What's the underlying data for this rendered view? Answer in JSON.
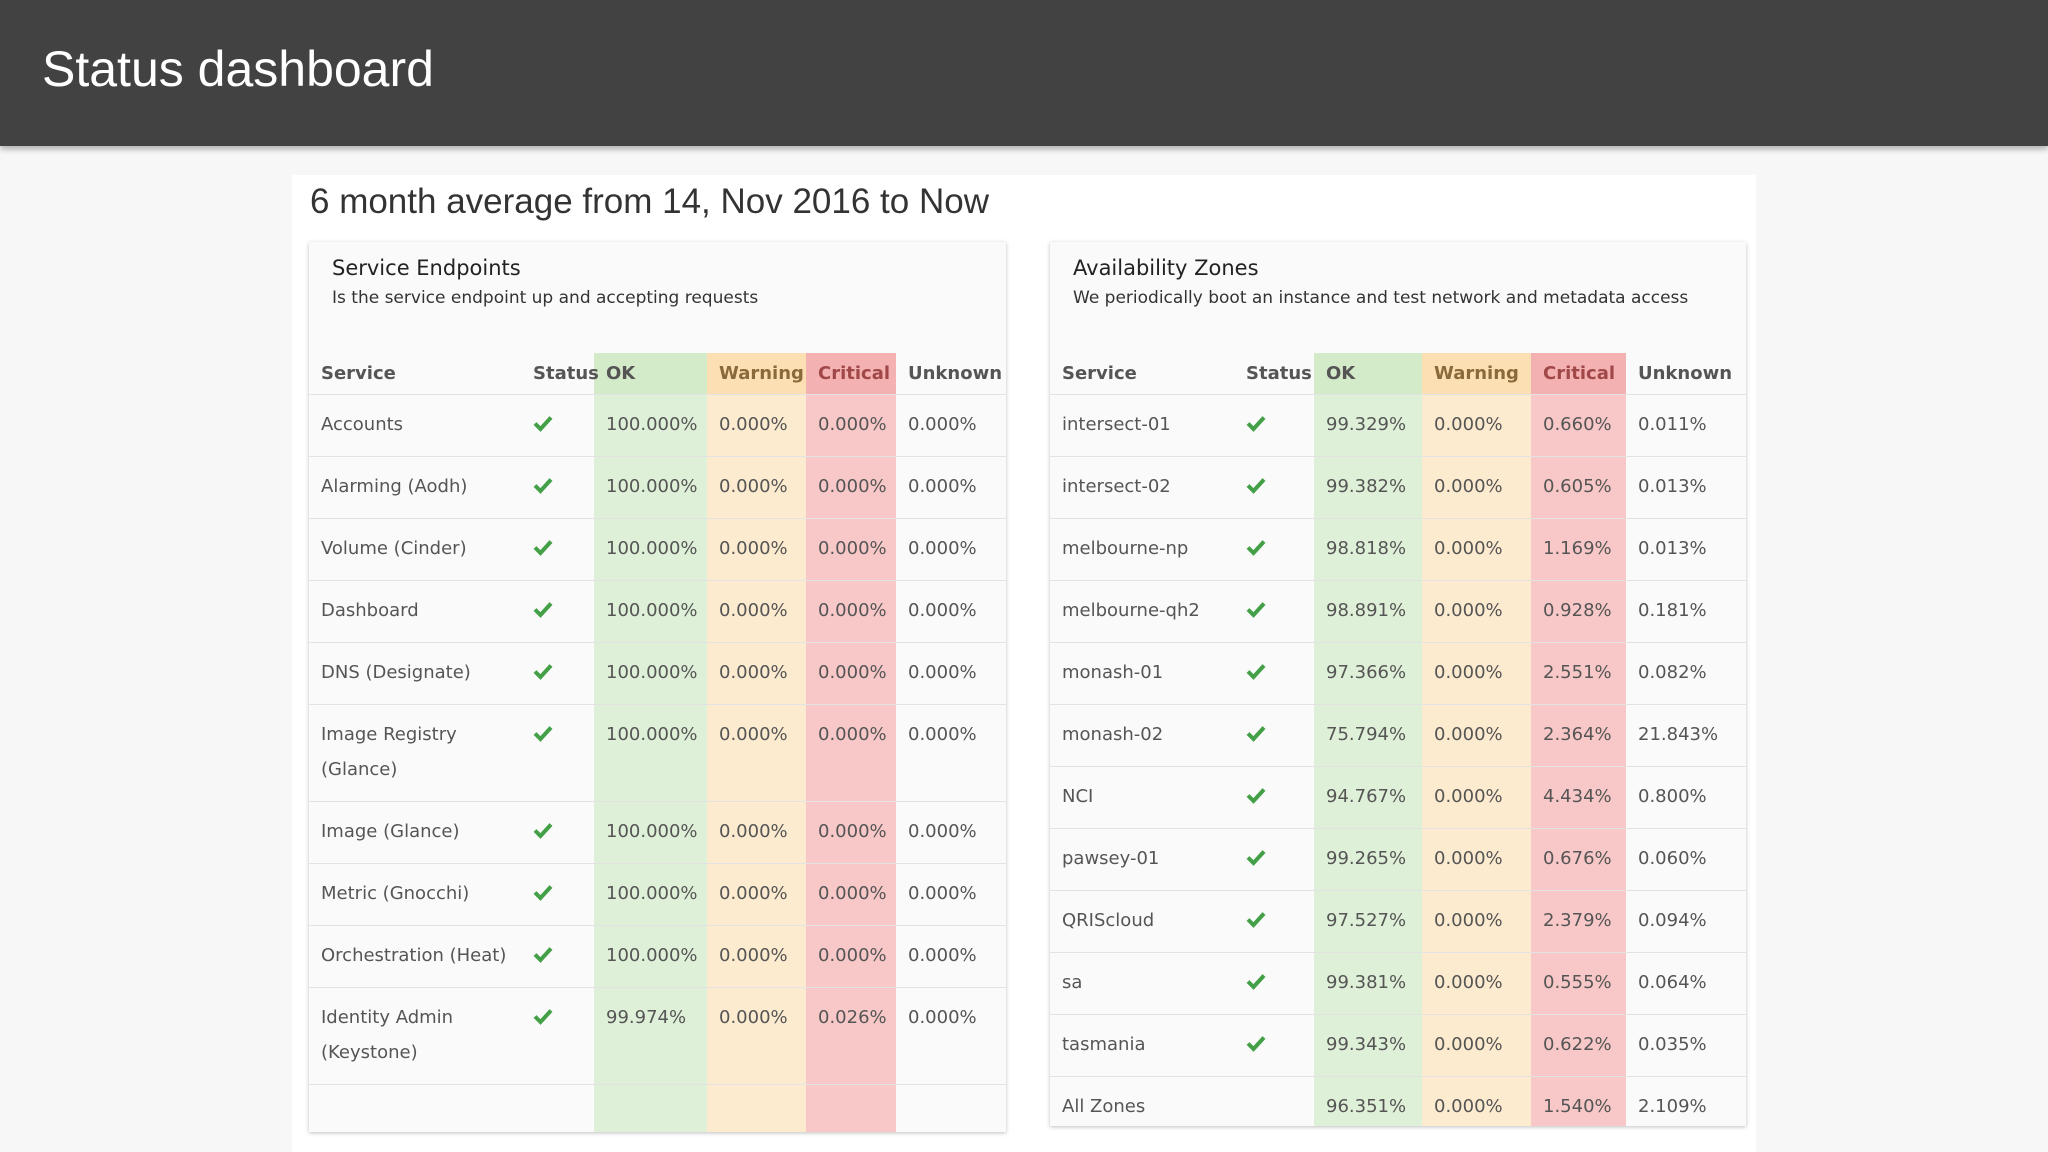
{
  "header": {
    "title": "Status dashboard"
  },
  "heading": "6 month average from 14, Nov 2016 to Now",
  "panels": [
    {
      "title": "Service Endpoints",
      "subtitle": "Is the service endpoint up and accepting requests",
      "columns": [
        "Service",
        "Status",
        "OK",
        "Warning",
        "Critical",
        "Unknown"
      ],
      "rows": [
        {
          "service": "Accounts",
          "status_ok": true,
          "ok": "100.000%",
          "warning": "0.000%",
          "critical": "0.000%",
          "unknown": "0.000%"
        },
        {
          "service": "Alarming (Aodh)",
          "status_ok": true,
          "ok": "100.000%",
          "warning": "0.000%",
          "critical": "0.000%",
          "unknown": "0.000%"
        },
        {
          "service": "Volume (Cinder)",
          "status_ok": true,
          "ok": "100.000%",
          "warning": "0.000%",
          "critical": "0.000%",
          "unknown": "0.000%"
        },
        {
          "service": "Dashboard",
          "status_ok": true,
          "ok": "100.000%",
          "warning": "0.000%",
          "critical": "0.000%",
          "unknown": "0.000%"
        },
        {
          "service": "DNS (Designate)",
          "status_ok": true,
          "ok": "100.000%",
          "warning": "0.000%",
          "critical": "0.000%",
          "unknown": "0.000%"
        },
        {
          "service": "Image Registry (Glance)",
          "status_ok": true,
          "ok": "100.000%",
          "warning": "0.000%",
          "critical": "0.000%",
          "unknown": "0.000%"
        },
        {
          "service": "Image (Glance)",
          "status_ok": true,
          "ok": "100.000%",
          "warning": "0.000%",
          "critical": "0.000%",
          "unknown": "0.000%"
        },
        {
          "service": "Metric (Gnocchi)",
          "status_ok": true,
          "ok": "100.000%",
          "warning": "0.000%",
          "critical": "0.000%",
          "unknown": "0.000%"
        },
        {
          "service": "Orchestration (Heat)",
          "status_ok": true,
          "ok": "100.000%",
          "warning": "0.000%",
          "critical": "0.000%",
          "unknown": "0.000%"
        },
        {
          "service": "Identity Admin (Keystone)",
          "status_ok": true,
          "ok": "99.974%",
          "warning": "0.000%",
          "critical": "0.026%",
          "unknown": "0.000%"
        }
      ]
    },
    {
      "title": "Availability Zones",
      "subtitle": "We periodically boot an instance and test network and metadata access",
      "columns": [
        "Service",
        "Status",
        "OK",
        "Warning",
        "Critical",
        "Unknown"
      ],
      "rows": [
        {
          "service": "intersect-01",
          "status_ok": true,
          "ok": "99.329%",
          "warning": "0.000%",
          "critical": "0.660%",
          "unknown": "0.011%"
        },
        {
          "service": "intersect-02",
          "status_ok": true,
          "ok": "99.382%",
          "warning": "0.000%",
          "critical": "0.605%",
          "unknown": "0.013%"
        },
        {
          "service": "melbourne-np",
          "status_ok": true,
          "ok": "98.818%",
          "warning": "0.000%",
          "critical": "1.169%",
          "unknown": "0.013%"
        },
        {
          "service": "melbourne-qh2",
          "status_ok": true,
          "ok": "98.891%",
          "warning": "0.000%",
          "critical": "0.928%",
          "unknown": "0.181%"
        },
        {
          "service": "monash-01",
          "status_ok": true,
          "ok": "97.366%",
          "warning": "0.000%",
          "critical": "2.551%",
          "unknown": "0.082%"
        },
        {
          "service": "monash-02",
          "status_ok": true,
          "ok": "75.794%",
          "warning": "0.000%",
          "critical": "2.364%",
          "unknown": "21.843%"
        },
        {
          "service": "NCI",
          "status_ok": true,
          "ok": "94.767%",
          "warning": "0.000%",
          "critical": "4.434%",
          "unknown": "0.800%"
        },
        {
          "service": "pawsey-01",
          "status_ok": true,
          "ok": "99.265%",
          "warning": "0.000%",
          "critical": "0.676%",
          "unknown": "0.060%"
        },
        {
          "service": "QRIScloud",
          "status_ok": true,
          "ok": "97.527%",
          "warning": "0.000%",
          "critical": "2.379%",
          "unknown": "0.094%"
        },
        {
          "service": "sa",
          "status_ok": true,
          "ok": "99.381%",
          "warning": "0.000%",
          "critical": "0.555%",
          "unknown": "0.064%"
        },
        {
          "service": "tasmania",
          "status_ok": true,
          "ok": "99.343%",
          "warning": "0.000%",
          "critical": "0.622%",
          "unknown": "0.035%"
        },
        {
          "service": "All Zones",
          "status_ok": false,
          "ok": "96.351%",
          "warning": "0.000%",
          "critical": "1.540%",
          "unknown": "2.109%"
        }
      ]
    }
  ]
}
